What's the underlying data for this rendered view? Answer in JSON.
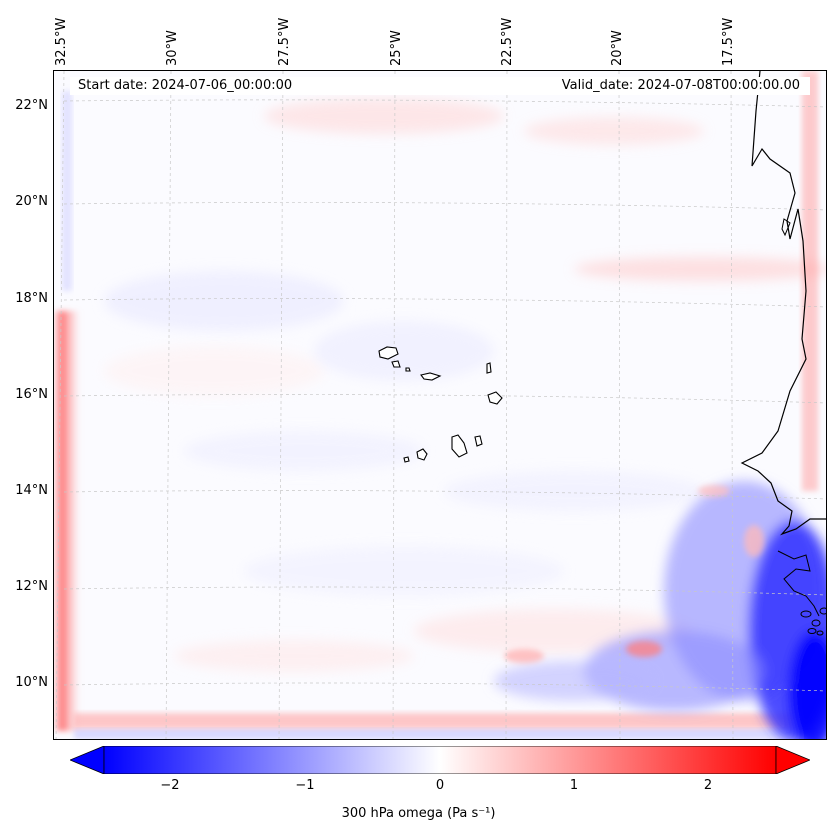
{
  "map": {
    "header": {
      "start": "Start date: 2024-07-06_00:00:00",
      "valid": "Valid_date: 2024-07-08T00:00:00.00"
    },
    "lon_labels": [
      "32.5°W",
      "30°W",
      "27.5°W",
      "25°W",
      "22.5°W",
      "20°W",
      "17.5°W"
    ],
    "lat_labels": [
      "22°N",
      "20°N",
      "18°N",
      "16°N",
      "14°N",
      "12°N",
      "10°N"
    ],
    "colorbar": {
      "ticks": [
        "−2",
        "−1",
        "0",
        "1",
        "2"
      ],
      "label": "300 hPa omega (Pa s⁻¹)",
      "min": -2.6,
      "max": 2.6,
      "tick_values": [
        -2,
        -1,
        0,
        1,
        2
      ],
      "colors": {
        "negative": "#0000ff",
        "neutral": "#ffffff",
        "positive": "#ff0000"
      }
    },
    "colors": {
      "coastline": "#000000",
      "grid": "#c8c8c8"
    }
  }
}
